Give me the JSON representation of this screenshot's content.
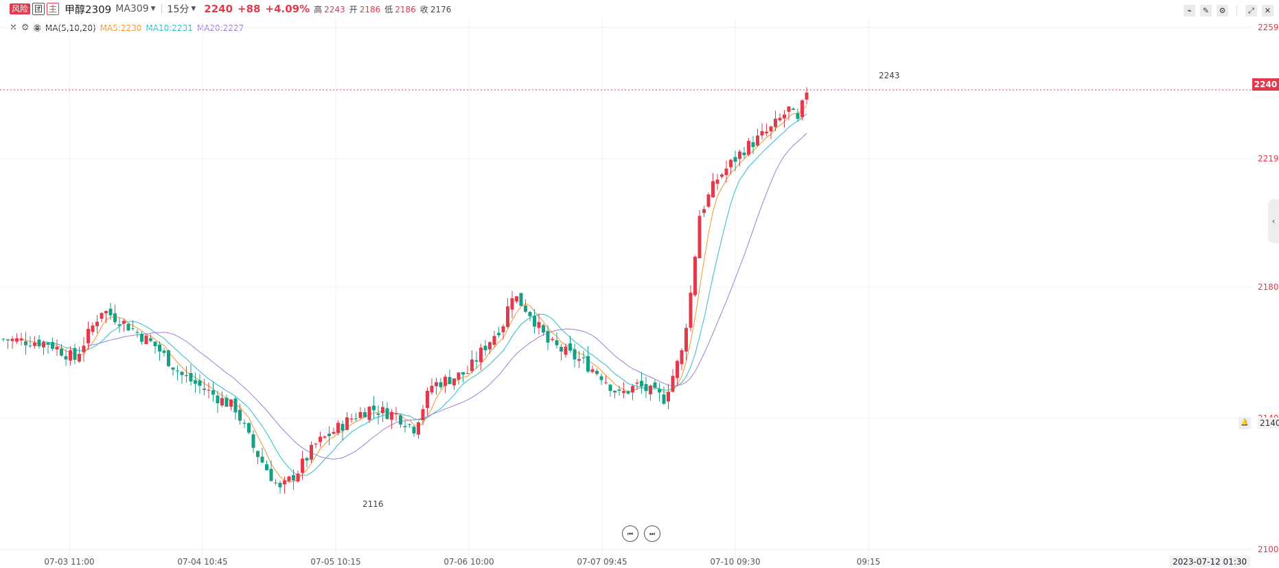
{
  "header": {
    "risk_tag": "风险",
    "tag_box": "团",
    "tag_main": "主",
    "symbol": "甲醇2309",
    "contract": "MA309",
    "period": "15分",
    "last": "2240",
    "change": "+88",
    "change_pct": "+4.09%",
    "high_label": "高",
    "high": "2243",
    "open_label": "开",
    "open": "2186",
    "low_label": "低",
    "low": "2186",
    "close_label": "收",
    "close": "2176"
  },
  "toolbar": {
    "tools": [
      "line-tool-icon",
      "pen-icon",
      "settings-icon",
      "expand-icon",
      "close-icon"
    ]
  },
  "indicator": {
    "name": "MA(5,10,20)",
    "ma5": "MA5:2230",
    "ma10": "MA10:2231",
    "ma20": "MA20:2227"
  },
  "price_axis": {
    "current_price": "2240",
    "marker_price": "2140",
    "crosshair_time": "2023-07-12 01:30"
  },
  "annotations": {
    "max_label": "2243",
    "min_label": "2116"
  },
  "colors": {
    "up": "#e2394b",
    "down": "#15a085",
    "ma5": "#f5922f",
    "ma10": "#2bbcc9",
    "ma20": "#9b7ed6"
  },
  "chart_data": {
    "type": "candlestick",
    "x_tick_labels": [
      "07-03 11:00",
      "07-04 10:45",
      "07-05 10:15",
      "07-06 10:00",
      "07-07 09:45",
      "07-10 09:30",
      "09:15"
    ],
    "y_tick_labels": [
      "2259",
      "2219",
      "2180",
      "2140",
      "2100"
    ],
    "ylim": [
      2100,
      2259
    ],
    "max": 2243,
    "min": 2116,
    "ma_series": [
      {
        "name": "MA5",
        "last": 2230
      },
      {
        "name": "MA10",
        "last": 2231
      },
      {
        "name": "MA20",
        "last": 2227
      }
    ]
  }
}
